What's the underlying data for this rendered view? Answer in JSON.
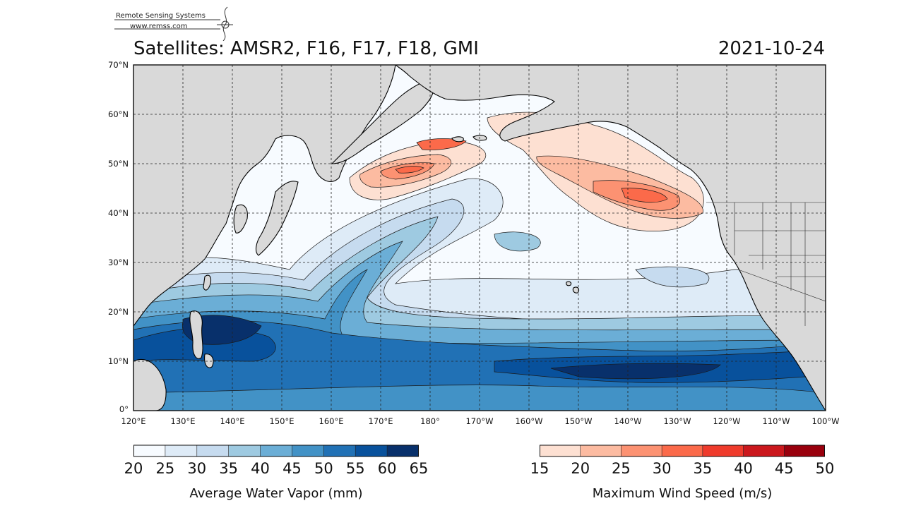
{
  "logo": {
    "name": "Remote Sensing Systems",
    "url": "www.remss.com"
  },
  "header": {
    "title": "Satellites: AMSR2, F16, F17, F18, GMI",
    "date": "2021-10-24"
  },
  "map": {
    "lat_labels": [
      "70°N",
      "60°N",
      "50°N",
      "40°N",
      "30°N",
      "20°N",
      "10°N",
      "0°"
    ],
    "lon_labels": [
      "120°E",
      "130°E",
      "140°E",
      "150°E",
      "160°E",
      "170°E",
      "180°",
      "170°W",
      "160°W",
      "150°W",
      "140°W",
      "130°W",
      "120°W",
      "110°W",
      "100°W"
    ],
    "extent": {
      "lat_min": 0,
      "lat_max": 70,
      "lon_min_deg_east": 120,
      "lon_max_deg_east": 260
    },
    "grid": "dashed",
    "colors": {
      "land": "#d9d9d9",
      "ocean_low": "#f7fbff",
      "coast": "#000000"
    }
  },
  "water_vapor_colorbar": {
    "ticks": [
      "20",
      "25",
      "30",
      "35",
      "40",
      "45",
      "50",
      "55",
      "60",
      "65"
    ],
    "label": "Average Water Vapor (mm)",
    "colors": [
      "#f7fbff",
      "#deebf7",
      "#c6dbef",
      "#9ecae1",
      "#6baed6",
      "#4292c6",
      "#2171b5",
      "#08519c",
      "#08306b"
    ]
  },
  "wind_speed_colorbar": {
    "ticks": [
      "15",
      "20",
      "25",
      "30",
      "35",
      "40",
      "45",
      "50"
    ],
    "label": "Maximum Wind Speed (m/s)",
    "colors": [
      "#fde0d2",
      "#fcbba1",
      "#fc9272",
      "#fb6a4a",
      "#ef3b2c",
      "#cb181d",
      "#99000d"
    ]
  }
}
